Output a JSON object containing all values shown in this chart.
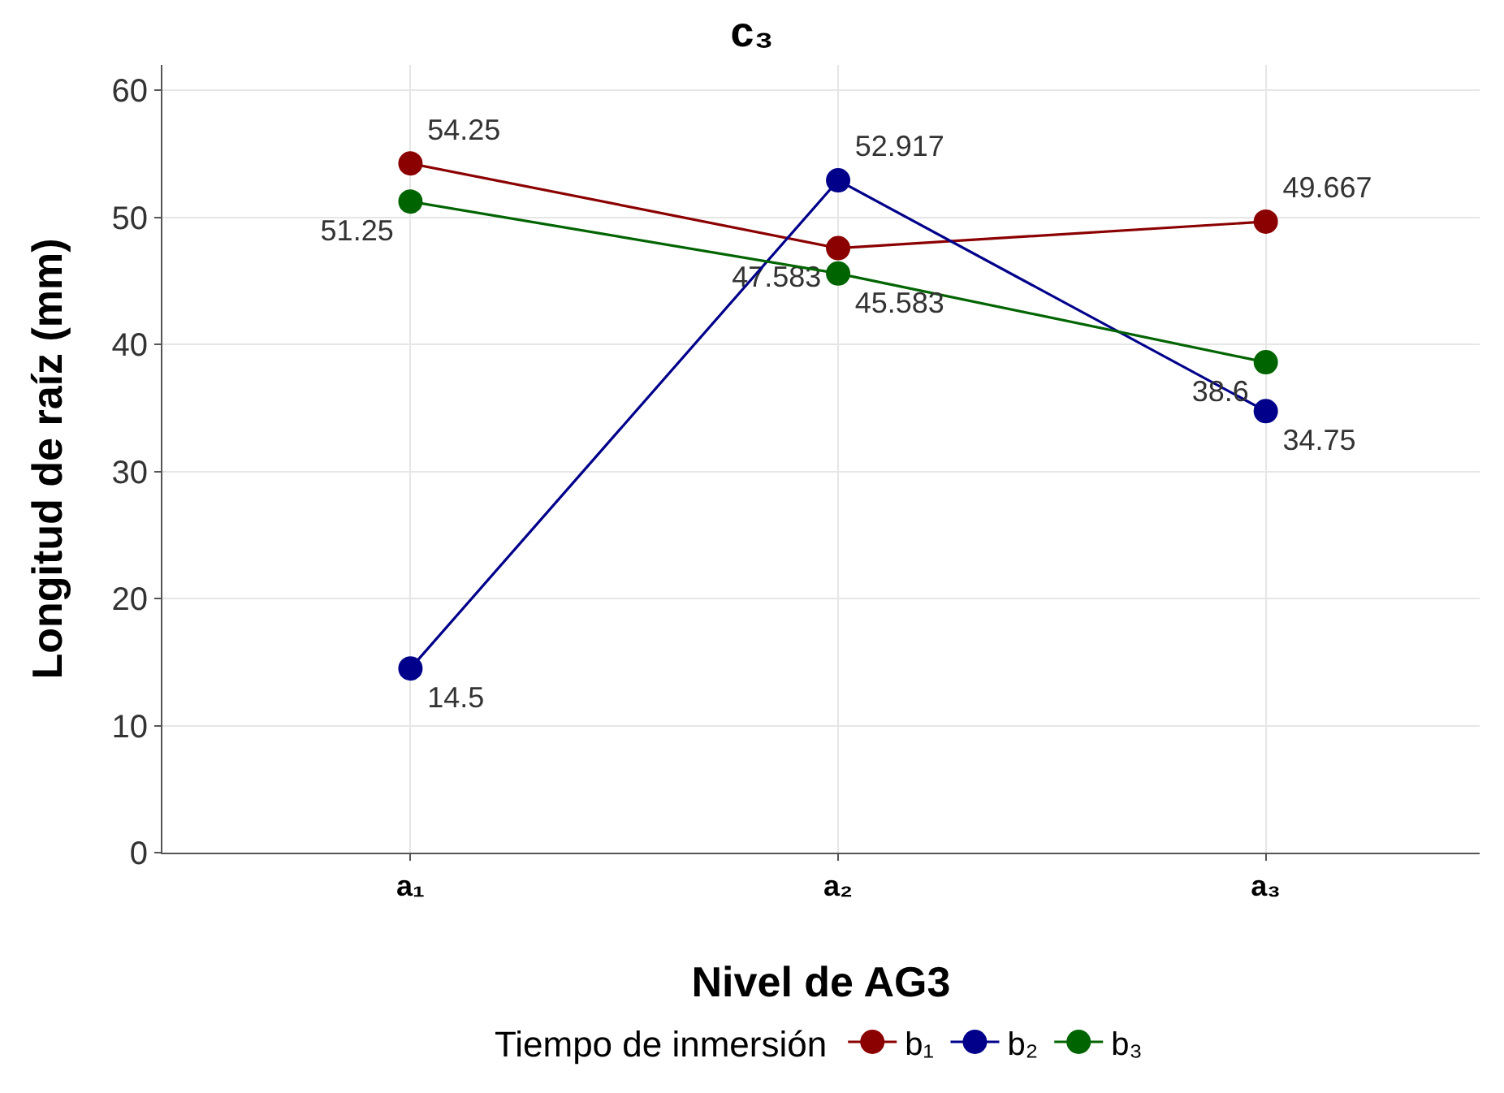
{
  "chart_data": {
    "type": "line",
    "title": "c₃",
    "xlabel": "Nivel de AG3",
    "ylabel": "Longitud de raíz (mm)",
    "legend_title": "Tiempo de inmersión",
    "categories": [
      "a₁",
      "a₂",
      "a₃"
    ],
    "series": [
      {
        "name": "b₁",
        "color": "#8b0000",
        "values": [
          54.25,
          47.583,
          49.667
        ]
      },
      {
        "name": "b₂",
        "color": "#00008b",
        "values": [
          14.5,
          52.917,
          34.75
        ]
      },
      {
        "name": "b₃",
        "color": "#006400",
        "values": [
          51.25,
          45.583,
          38.6
        ]
      }
    ],
    "ylim": [
      0,
      62
    ],
    "yticks": [
      0,
      10,
      20,
      30,
      40,
      50,
      60
    ],
    "grid": true,
    "legend": "bottom",
    "marker": "circle",
    "line_style": "solid",
    "data_labels": true
  }
}
